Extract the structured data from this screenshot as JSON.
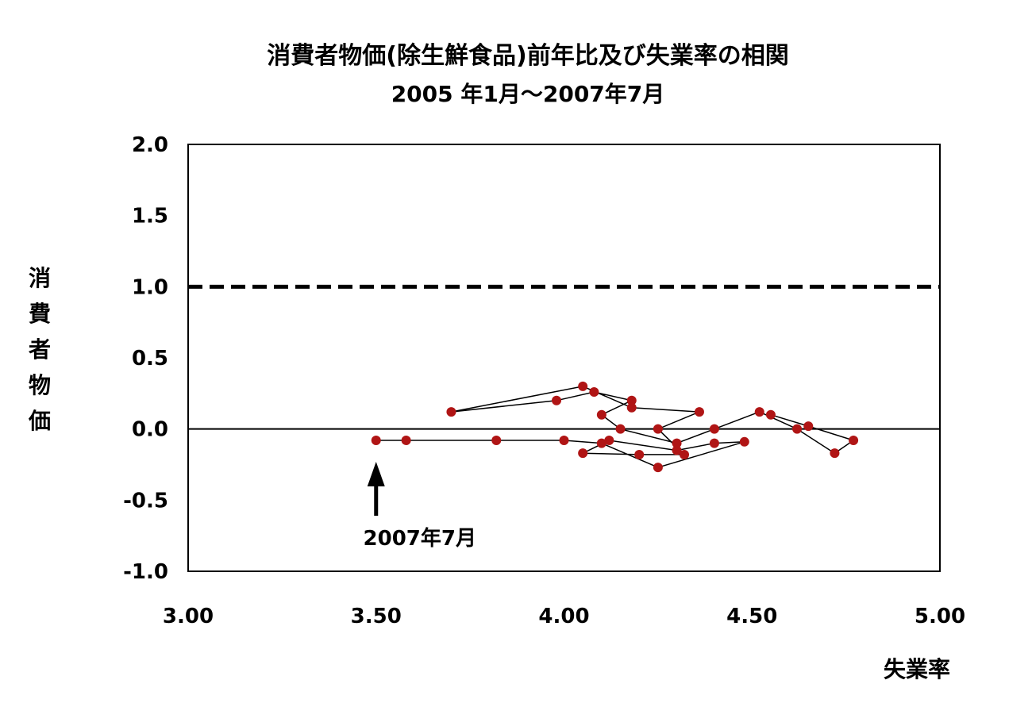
{
  "chart_data": {
    "type": "scatter",
    "title": "消費者物価(除生鮮食品)前年比及び失業率の相関",
    "subtitle": "2005 年1月～2007年7月",
    "xlabel": "失業率",
    "ylabel": "消費者物価",
    "xlim": [
      3.0,
      5.0
    ],
    "ylim": [
      -1.0,
      2.0
    ],
    "x_ticks": [
      "3.00",
      "3.50",
      "4.00",
      "4.50",
      "5.00"
    ],
    "y_ticks": [
      "2.0",
      "1.5",
      "1.0",
      "0.5",
      "0.0",
      "-0.5",
      "-1.0"
    ],
    "grid": false,
    "connected": true,
    "reference_line": {
      "y": 1.0,
      "style": "dashed"
    },
    "zero_line": {
      "y": 0.0,
      "style": "solid"
    },
    "annotation": {
      "text": "2007年7月",
      "x": 3.5,
      "y": -0.08
    },
    "series": [
      {
        "color": "#b01515",
        "points": [
          [
            4.55,
            0.1
          ],
          [
            4.65,
            0.02
          ],
          [
            4.77,
            -0.08
          ],
          [
            4.72,
            -0.17
          ],
          [
            4.62,
            0.0
          ],
          [
            4.52,
            0.12
          ],
          [
            4.4,
            0.0
          ],
          [
            4.3,
            -0.1
          ],
          [
            4.15,
            0.0
          ],
          [
            4.1,
            0.1
          ],
          [
            4.18,
            0.2
          ],
          [
            4.08,
            0.26
          ],
          [
            3.98,
            0.2
          ],
          [
            3.7,
            0.12
          ],
          [
            4.05,
            0.3
          ],
          [
            4.18,
            0.15
          ],
          [
            4.36,
            0.12
          ],
          [
            4.25,
            0.0
          ],
          [
            4.32,
            -0.18
          ],
          [
            4.2,
            -0.18
          ],
          [
            4.05,
            -0.17
          ],
          [
            4.12,
            -0.08
          ],
          [
            4.3,
            -0.15
          ],
          [
            4.4,
            -0.1
          ],
          [
            4.48,
            -0.09
          ],
          [
            4.25,
            -0.27
          ],
          [
            4.1,
            -0.1
          ],
          [
            4.0,
            -0.08
          ],
          [
            3.82,
            -0.08
          ],
          [
            3.58,
            -0.08
          ],
          [
            3.5,
            -0.08
          ]
        ]
      }
    ]
  }
}
